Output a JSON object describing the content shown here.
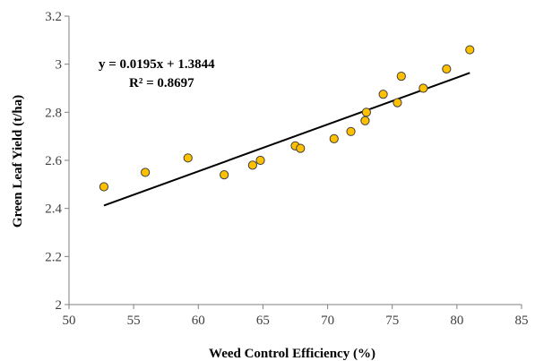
{
  "chart_data": {
    "type": "scatter",
    "title": "",
    "xlabel": "Weed Control Efficiency (%)",
    "ylabel": "Green Leaf Yield (t/ha)",
    "xlim": [
      50,
      85
    ],
    "ylim": [
      2,
      3.2
    ],
    "x_ticks": [
      50,
      55,
      60,
      65,
      70,
      75,
      80,
      85
    ],
    "y_ticks": [
      2,
      2.2,
      2.4,
      2.6,
      2.8,
      3,
      3.2
    ],
    "x_tick_labels": [
      "50",
      "55",
      "60",
      "65",
      "70",
      "75",
      "80",
      "85"
    ],
    "y_tick_labels": [
      "2",
      "2.2",
      "2.4",
      "2.6",
      "2.8",
      "3",
      "3.2"
    ],
    "grid": false,
    "legend": "none",
    "series": [
      {
        "marker_color": "#FFC000",
        "marker_edge_color": "#404040",
        "points": [
          {
            "x": 52.7,
            "y": 2.49
          },
          {
            "x": 55.9,
            "y": 2.55
          },
          {
            "x": 59.2,
            "y": 2.61
          },
          {
            "x": 62.0,
            "y": 2.54
          },
          {
            "x": 64.2,
            "y": 2.58
          },
          {
            "x": 64.8,
            "y": 2.6
          },
          {
            "x": 67.5,
            "y": 2.66
          },
          {
            "x": 67.9,
            "y": 2.65
          },
          {
            "x": 70.5,
            "y": 2.69
          },
          {
            "x": 71.8,
            "y": 2.72
          },
          {
            "x": 72.9,
            "y": 2.765
          },
          {
            "x": 73.0,
            "y": 2.8
          },
          {
            "x": 74.3,
            "y": 2.875
          },
          {
            "x": 75.4,
            "y": 2.84
          },
          {
            "x": 75.7,
            "y": 2.95
          },
          {
            "x": 77.4,
            "y": 2.9
          },
          {
            "x": 79.2,
            "y": 2.98
          },
          {
            "x": 81.0,
            "y": 3.06
          }
        ]
      }
    ],
    "trendline": {
      "slope": 0.0195,
      "intercept": 1.3844,
      "x_start": 52.7,
      "x_end": 81.0,
      "color": "#000000",
      "equation_label": "y = 0.0195x + 1.3844",
      "r2_label": "R² = 0.8697"
    }
  }
}
